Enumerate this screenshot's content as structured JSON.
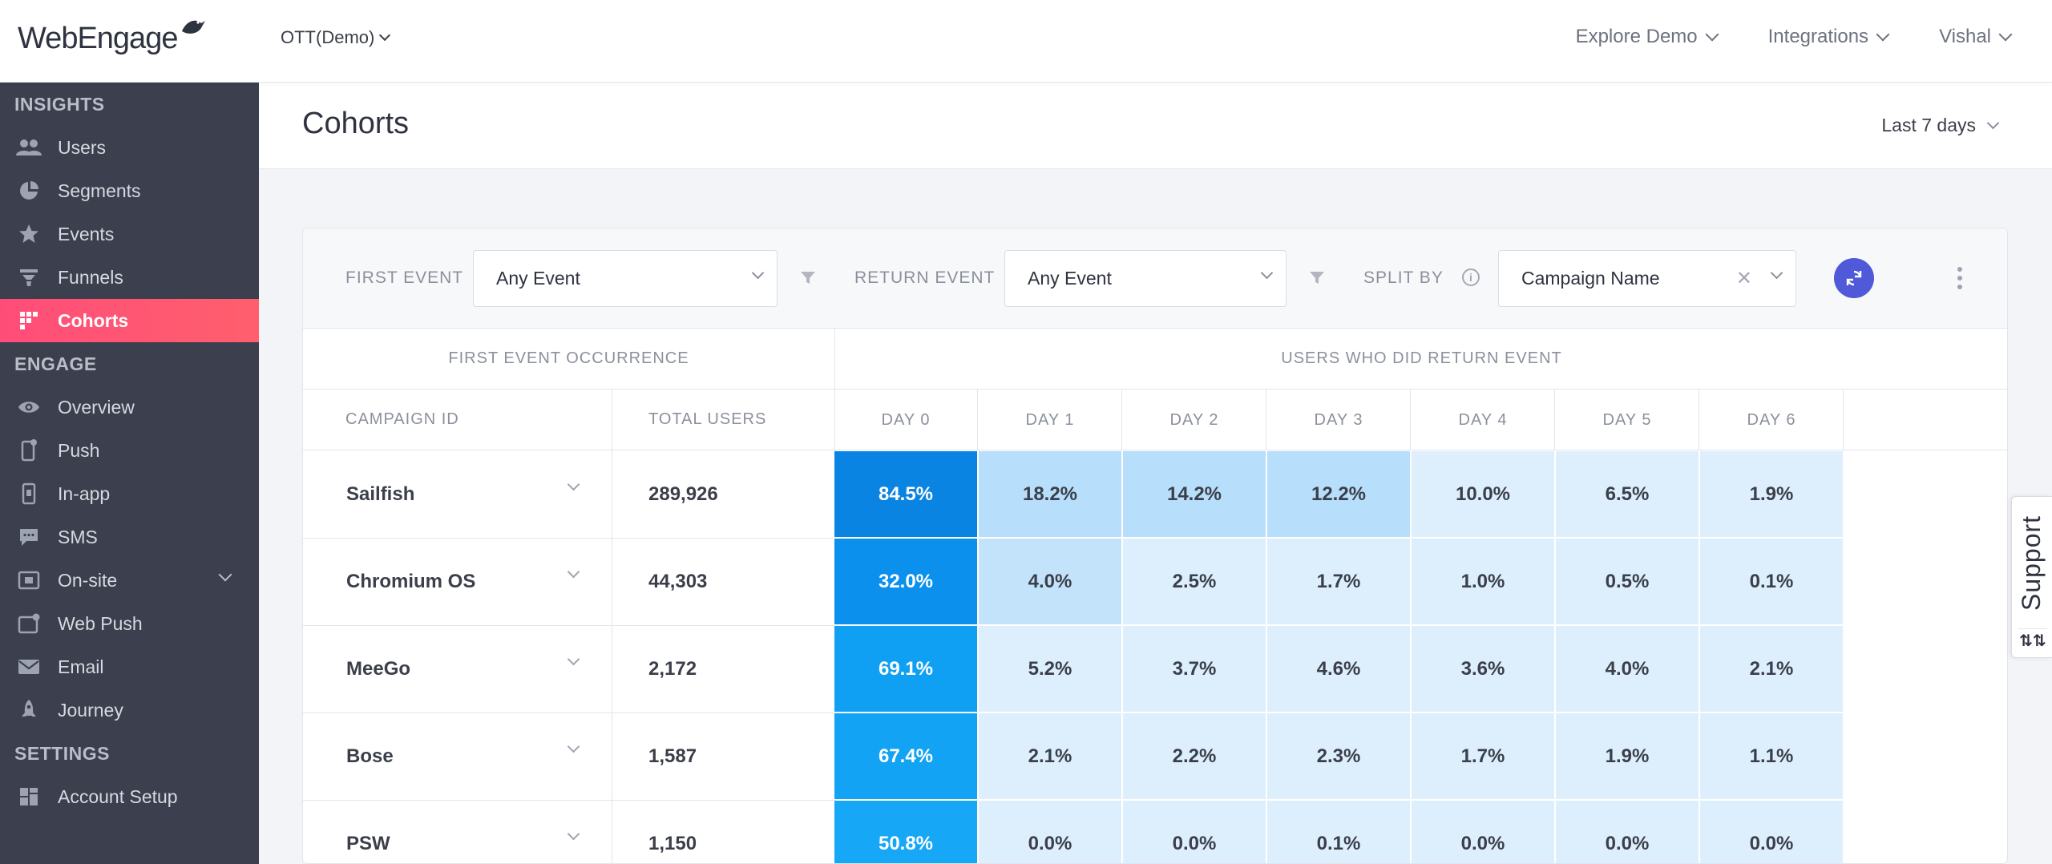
{
  "app": {
    "logo_text": "WebEngage",
    "project": "OTT(Demo)"
  },
  "topnav": {
    "explore": "Explore Demo",
    "integrations": "Integrations",
    "user": "Vishal"
  },
  "sidebar": {
    "insights_label": "INSIGHTS",
    "insights": [
      "Users",
      "Segments",
      "Events",
      "Funnels",
      "Cohorts"
    ],
    "engage_label": "ENGAGE",
    "engage": [
      "Overview",
      "Push",
      "In-app",
      "SMS",
      "On-site",
      "Web Push",
      "Email",
      "Journey"
    ],
    "settings_label": "SETTINGS",
    "settings": [
      "Account Setup"
    ],
    "active": "Cohorts"
  },
  "page": {
    "title": "Cohorts",
    "date_range": "Last 7 days"
  },
  "filters": {
    "first_event_label": "FIRST EVENT",
    "first_event_value": "Any Event",
    "return_event_label": "RETURN EVENT",
    "return_event_value": "Any Event",
    "split_by_label": "SPLIT BY",
    "split_by_value": "Campaign Name"
  },
  "table": {
    "group_first": "FIRST EVENT OCCURRENCE",
    "group_return": "USERS WHO DID RETURN EVENT",
    "col_campaign": "CAMPAIGN ID",
    "col_total": "TOTAL USERS",
    "days": [
      "DAY 0",
      "DAY 1",
      "DAY 2",
      "DAY 3",
      "DAY 4",
      "DAY 5",
      "DAY 6"
    ],
    "rows": [
      {
        "name": "Sailfish",
        "total": "289,926",
        "values": [
          "84.5%",
          "18.2%",
          "14.2%",
          "12.2%",
          "10.0%",
          "6.5%",
          "1.9%"
        ]
      },
      {
        "name": "Chromium OS",
        "total": "44,303",
        "values": [
          "32.0%",
          "4.0%",
          "2.5%",
          "1.7%",
          "1.0%",
          "0.5%",
          "0.1%"
        ]
      },
      {
        "name": "MeeGo",
        "total": "2,172",
        "values": [
          "69.1%",
          "5.2%",
          "3.7%",
          "4.6%",
          "3.6%",
          "4.0%",
          "2.1%"
        ]
      },
      {
        "name": "Bose",
        "total": "1,587",
        "values": [
          "67.4%",
          "2.1%",
          "2.2%",
          "2.3%",
          "1.7%",
          "1.9%",
          "1.1%"
        ]
      },
      {
        "name": "PSW",
        "total": "1,150",
        "values": [
          "50.8%",
          "0.0%",
          "0.0%",
          "0.1%",
          "0.0%",
          "0.0%",
          "0.0%"
        ]
      }
    ]
  },
  "support": {
    "label": "Support"
  },
  "colors": {
    "accent": "#ff4d79",
    "sidebar_bg": "#3b3f4e",
    "heat_dark": "#0e8ee8",
    "heat_mid": "#b9e0fa",
    "heat_light": "#ddeffd",
    "refresh": "#5059d8"
  }
}
